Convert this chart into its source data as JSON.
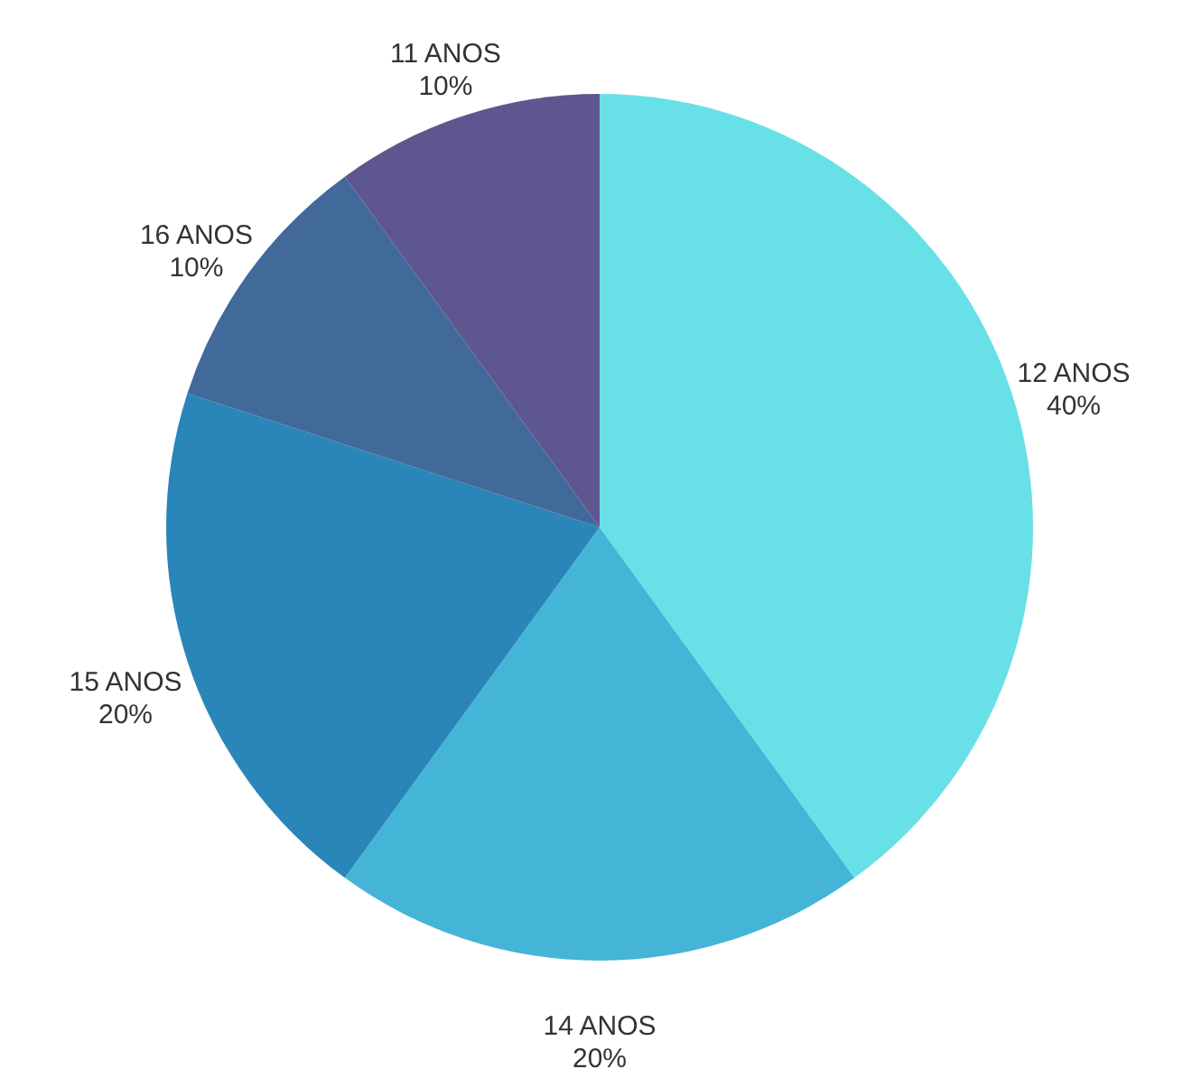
{
  "chart_data": {
    "type": "pie",
    "categories": [
      "12 ANOS",
      "14 ANOS",
      "15 ANOS",
      "16 ANOS",
      "11 ANOS"
    ],
    "values": [
      40,
      20,
      20,
      10,
      10
    ],
    "colors": [
      "#68e0e7",
      "#44b5d6",
      "#2a86b8",
      "#41699a",
      "#5e568f"
    ],
    "value_labels": [
      "40%",
      "20%",
      "20%",
      "10%",
      "10%"
    ]
  }
}
